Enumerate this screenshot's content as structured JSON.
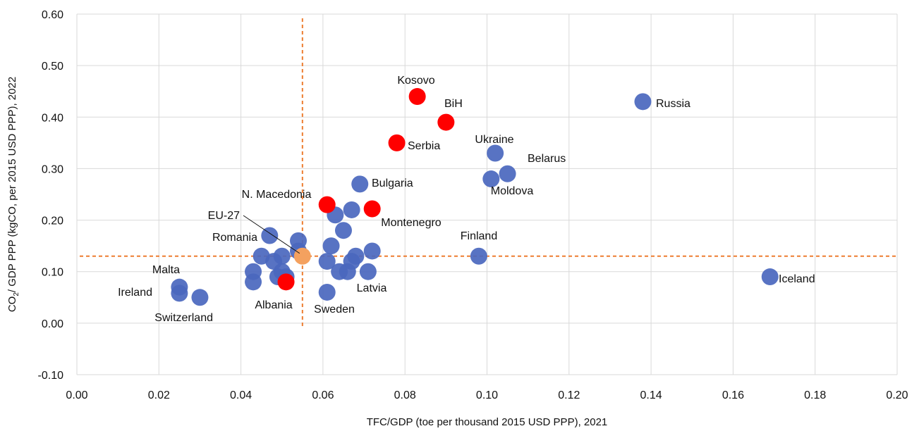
{
  "chart_data": {
    "type": "scatter",
    "xlabel": "TFC/GDP (toe per thousand 2015 USD PPP), 2021",
    "ylabel": {
      "pre": "CO",
      "sub": "2",
      "post": "/ GDP PPP (kgCO, per 2015 USD PPP), 2022"
    },
    "xlim": [
      0,
      0.2
    ],
    "ylim": [
      -0.1,
      0.6
    ],
    "x_ticks": [
      "0.00",
      "0.02",
      "0.04",
      "0.06",
      "0.08",
      "0.10",
      "0.12",
      "0.14",
      "0.16",
      "0.18",
      "0.20"
    ],
    "y_ticks": [
      "-0.10",
      "0.00",
      "0.10",
      "0.20",
      "0.30",
      "0.40",
      "0.50",
      "0.60"
    ],
    "grid": true,
    "reference_lines": {
      "x": 0.055,
      "y": 0.13,
      "color": "#ED7D31",
      "style": "dashed"
    },
    "colors": {
      "other": "#4A67BE",
      "highlight": "#FF0000",
      "eu": "#F4A15F"
    },
    "points": [
      {
        "x": 0.025,
        "y": 0.07,
        "group": "other",
        "label": "Malta"
      },
      {
        "x": 0.025,
        "y": 0.058,
        "group": "other",
        "label": "Ireland"
      },
      {
        "x": 0.03,
        "y": 0.05,
        "group": "other",
        "label": "Switzerland"
      },
      {
        "x": 0.043,
        "y": 0.1,
        "group": "other",
        "label": ""
      },
      {
        "x": 0.043,
        "y": 0.08,
        "group": "other",
        "label": ""
      },
      {
        "x": 0.045,
        "y": 0.13,
        "group": "other",
        "label": ""
      },
      {
        "x": 0.047,
        "y": 0.17,
        "group": "other",
        "label": "Romania"
      },
      {
        "x": 0.048,
        "y": 0.12,
        "group": "other",
        "label": ""
      },
      {
        "x": 0.049,
        "y": 0.09,
        "group": "other",
        "label": ""
      },
      {
        "x": 0.05,
        "y": 0.13,
        "group": "other",
        "label": ""
      },
      {
        "x": 0.05,
        "y": 0.1,
        "group": "other",
        "label": ""
      },
      {
        "x": 0.051,
        "y": 0.09,
        "group": "other",
        "label": ""
      },
      {
        "x": 0.054,
        "y": 0.16,
        "group": "other",
        "label": ""
      },
      {
        "x": 0.054,
        "y": 0.14,
        "group": "other",
        "label": ""
      },
      {
        "x": 0.061,
        "y": 0.12,
        "group": "other",
        "label": ""
      },
      {
        "x": 0.061,
        "y": 0.06,
        "group": "other",
        "label": "Sweden"
      },
      {
        "x": 0.062,
        "y": 0.15,
        "group": "other",
        "label": ""
      },
      {
        "x": 0.063,
        "y": 0.21,
        "group": "other",
        "label": ""
      },
      {
        "x": 0.064,
        "y": 0.1,
        "group": "other",
        "label": ""
      },
      {
        "x": 0.065,
        "y": 0.18,
        "group": "other",
        "label": ""
      },
      {
        "x": 0.066,
        "y": 0.1,
        "group": "other",
        "label": ""
      },
      {
        "x": 0.067,
        "y": 0.22,
        "group": "other",
        "label": ""
      },
      {
        "x": 0.067,
        "y": 0.12,
        "group": "other",
        "label": ""
      },
      {
        "x": 0.068,
        "y": 0.13,
        "group": "other",
        "label": ""
      },
      {
        "x": 0.069,
        "y": 0.27,
        "group": "other",
        "label": "Bulgaria"
      },
      {
        "x": 0.071,
        "y": 0.1,
        "group": "other",
        "label": "Latvia"
      },
      {
        "x": 0.072,
        "y": 0.14,
        "group": "other",
        "label": ""
      },
      {
        "x": 0.098,
        "y": 0.13,
        "group": "other",
        "label": "Finland"
      },
      {
        "x": 0.101,
        "y": 0.28,
        "group": "other",
        "label": "Moldova"
      },
      {
        "x": 0.102,
        "y": 0.33,
        "group": "other",
        "label": "Ukraine"
      },
      {
        "x": 0.105,
        "y": 0.29,
        "group": "other",
        "label": "Belarus"
      },
      {
        "x": 0.138,
        "y": 0.43,
        "group": "other",
        "label": "Russia"
      },
      {
        "x": 0.169,
        "y": 0.09,
        "group": "other",
        "label": "Iceland"
      },
      {
        "x": 0.051,
        "y": 0.08,
        "group": "highlight",
        "label": "Albania"
      },
      {
        "x": 0.061,
        "y": 0.23,
        "group": "highlight",
        "label": "N. Macedonia"
      },
      {
        "x": 0.072,
        "y": 0.222,
        "group": "highlight",
        "label": "Montenegro"
      },
      {
        "x": 0.078,
        "y": 0.35,
        "group": "highlight",
        "label": "Serbia"
      },
      {
        "x": 0.083,
        "y": 0.44,
        "group": "highlight",
        "label": "Kosovo"
      },
      {
        "x": 0.09,
        "y": 0.39,
        "group": "highlight",
        "label": "BiH"
      },
      {
        "x": 0.055,
        "y": 0.13,
        "group": "eu",
        "label": "EU-27"
      }
    ]
  }
}
